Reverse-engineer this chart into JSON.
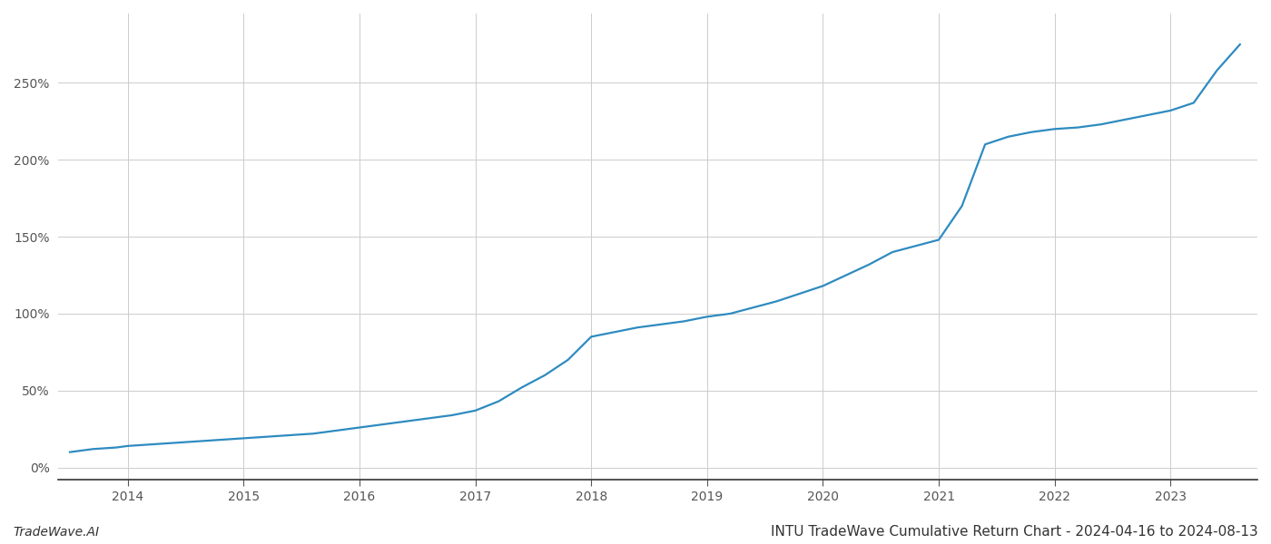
{
  "title": "INTU TradeWave Cumulative Return Chart - 2024-04-16 to 2024-08-13",
  "watermark": "TradeWave.AI",
  "line_color": "#2e8bc0",
  "background_color": "#ffffff",
  "grid_color": "#cccccc",
  "x_years": [
    2014,
    2015,
    2016,
    2017,
    2018,
    2019,
    2020,
    2021,
    2022,
    2023
  ],
  "x_data": [
    2013.5,
    2013.7,
    2013.9,
    2014.0,
    2014.2,
    2014.4,
    2014.6,
    2014.8,
    2015.0,
    2015.2,
    2015.4,
    2015.6,
    2015.8,
    2016.0,
    2016.2,
    2016.4,
    2016.6,
    2016.8,
    2017.0,
    2017.2,
    2017.4,
    2017.6,
    2017.8,
    2018.0,
    2018.2,
    2018.4,
    2018.6,
    2018.8,
    2019.0,
    2019.2,
    2019.4,
    2019.6,
    2019.8,
    2020.0,
    2020.2,
    2020.4,
    2020.6,
    2020.8,
    2021.0,
    2021.2,
    2021.4,
    2021.6,
    2021.8,
    2022.0,
    2022.2,
    2022.4,
    2022.6,
    2022.8,
    2023.0,
    2023.2,
    2023.4,
    2023.6
  ],
  "y_data": [
    10,
    12,
    13,
    14,
    15,
    16,
    17,
    18,
    19,
    20,
    21,
    22,
    24,
    26,
    28,
    30,
    32,
    34,
    37,
    43,
    52,
    60,
    70,
    85,
    88,
    91,
    93,
    95,
    98,
    100,
    104,
    108,
    113,
    118,
    125,
    132,
    140,
    144,
    148,
    170,
    210,
    215,
    218,
    220,
    221,
    223,
    226,
    229,
    232,
    237,
    258,
    275
  ],
  "ylim": [
    -8,
    295
  ],
  "xlim": [
    2013.4,
    2023.75
  ],
  "yticks": [
    0,
    50,
    100,
    150,
    200,
    250
  ],
  "ytick_labels": [
    "0%",
    "50%",
    "100%",
    "150%",
    "200%",
    "250%"
  ],
  "title_fontsize": 11,
  "watermark_fontsize": 10,
  "tick_fontsize": 10,
  "line_width": 1.6
}
